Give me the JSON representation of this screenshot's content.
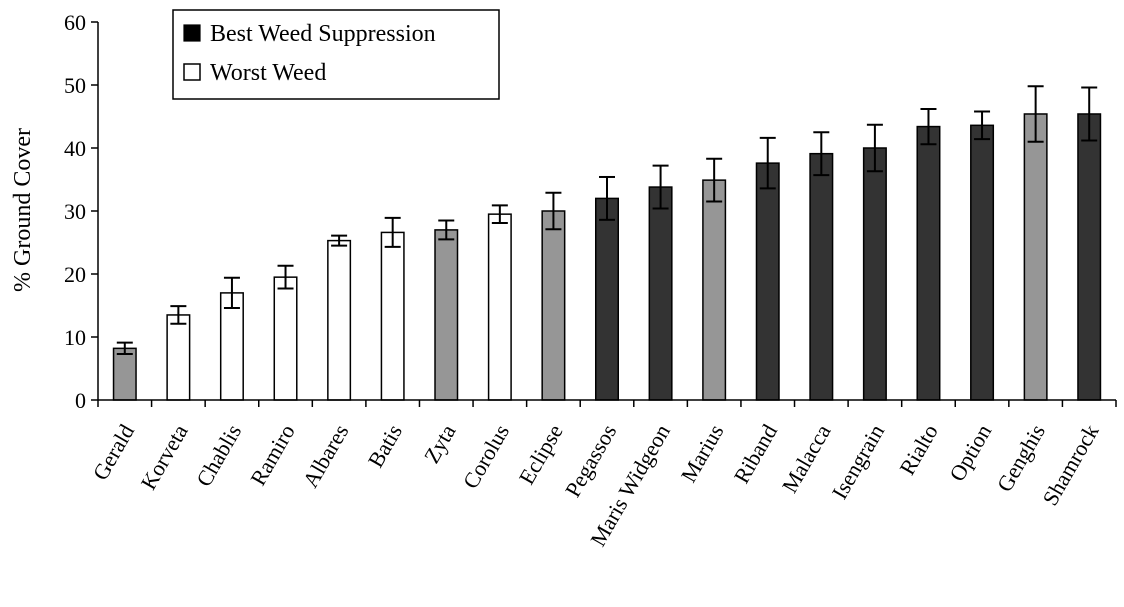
{
  "chart_data": {
    "type": "bar",
    "ylabel": "% Ground Cover",
    "xlabel": "",
    "ylim": [
      0,
      60
    ],
    "yticks": [
      0,
      10,
      20,
      30,
      40,
      50,
      60
    ],
    "grid": false,
    "legend_position": "top-left",
    "legend": [
      {
        "label": "Best Weed Suppression",
        "style": "dark"
      },
      {
        "label": "Worst Weed",
        "style": "white"
      }
    ],
    "colors": {
      "dark": "#333333",
      "white": "#ffffff",
      "gray": "#969696"
    },
    "categories": [
      "Gerald",
      "Korveta",
      "Chablis",
      "Ramiro",
      "Albares",
      "Batis",
      "Zyta",
      "Corolus",
      "Eclipse",
      "Pegassos",
      "Maris Widgeon",
      "Marius",
      "Riband",
      "Malacca",
      "Isengrain",
      "Rialto",
      "Option",
      "Genghis",
      "Shamrock"
    ],
    "values": [
      8.2,
      13.5,
      17.0,
      19.5,
      25.3,
      26.6,
      27.0,
      29.5,
      30.0,
      32.0,
      33.8,
      34.9,
      37.6,
      39.1,
      40.0,
      43.4,
      43.6,
      45.4,
      45.4
    ],
    "errors": [
      0.9,
      1.4,
      2.4,
      1.8,
      0.8,
      2.3,
      1.5,
      1.4,
      2.9,
      3.4,
      3.4,
      3.4,
      4.0,
      3.4,
      3.7,
      2.8,
      2.2,
      4.4,
      4.2
    ],
    "fills": [
      "gray",
      "white",
      "white",
      "white",
      "white",
      "white",
      "gray",
      "white",
      "gray",
      "dark",
      "dark",
      "gray",
      "dark",
      "dark",
      "dark",
      "dark",
      "dark",
      "gray",
      "dark"
    ]
  }
}
